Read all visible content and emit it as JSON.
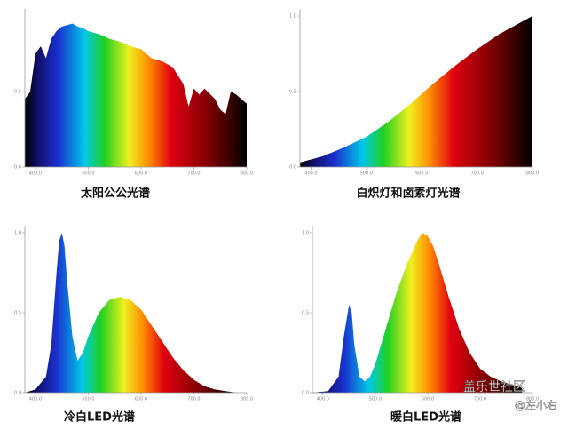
{
  "chart_data": [
    {
      "type": "area",
      "title": "太阳公公光谱",
      "x": [
        380,
        390,
        400,
        410,
        420,
        430,
        440,
        450,
        460,
        470,
        480,
        490,
        500,
        520,
        540,
        560,
        580,
        600,
        620,
        640,
        660,
        680,
        690,
        700,
        710,
        720,
        740,
        750,
        760,
        770,
        780,
        790,
        800
      ],
      "values": [
        0.45,
        0.5,
        0.75,
        0.8,
        0.72,
        0.85,
        0.9,
        0.93,
        0.94,
        0.95,
        0.93,
        0.92,
        0.9,
        0.88,
        0.85,
        0.83,
        0.8,
        0.78,
        0.72,
        0.7,
        0.66,
        0.55,
        0.4,
        0.52,
        0.48,
        0.52,
        0.45,
        0.38,
        0.35,
        0.5,
        0.48,
        0.45,
        0.42
      ],
      "xlim": [
        380,
        800
      ],
      "ylim": [
        0,
        1
      ],
      "xticks": [
        {
          "value": 400,
          "label": "400.0"
        },
        {
          "value": 500,
          "label": "500.0"
        },
        {
          "value": 600,
          "label": "600.0"
        },
        {
          "value": 700,
          "label": "700.0"
        },
        {
          "value": 800,
          "label": "800.0"
        }
      ],
      "yticks": [
        {
          "value": 0,
          "label": "0.0"
        },
        0.5
      ]
    },
    {
      "type": "area",
      "title": "白炽灯和卤素灯光谱",
      "x": [
        380,
        420,
        460,
        500,
        540,
        580,
        620,
        660,
        700,
        740,
        780,
        800
      ],
      "values": [
        0.03,
        0.07,
        0.13,
        0.2,
        0.3,
        0.42,
        0.55,
        0.67,
        0.78,
        0.88,
        0.96,
        1.0
      ],
      "xlim": [
        380,
        800
      ],
      "ylim": [
        0,
        1
      ],
      "xticks": [
        {
          "value": 400,
          "label": "400.0"
        },
        {
          "value": 500,
          "label": "500.0"
        },
        {
          "value": 600,
          "label": "600.0"
        },
        {
          "value": 700,
          "label": "700.0"
        },
        {
          "value": 800,
          "label": "800.0"
        }
      ],
      "yticks": [
        {
          "value": 0,
          "label": "0.0"
        },
        0.5,
        {
          "value": 1,
          "label": "1.0"
        }
      ]
    },
    {
      "type": "area",
      "title": "冷白LED光谱",
      "x": [
        380,
        400,
        420,
        430,
        440,
        445,
        450,
        455,
        460,
        470,
        480,
        490,
        500,
        520,
        540,
        560,
        580,
        600,
        620,
        640,
        660,
        680,
        700,
        720,
        740,
        760,
        780
      ],
      "values": [
        0,
        0.02,
        0.1,
        0.3,
        0.75,
        0.95,
        1.0,
        0.92,
        0.7,
        0.35,
        0.2,
        0.25,
        0.35,
        0.5,
        0.58,
        0.6,
        0.58,
        0.52,
        0.42,
        0.32,
        0.22,
        0.14,
        0.08,
        0.04,
        0.02,
        0.01,
        0
      ],
      "xlim": [
        380,
        800
      ],
      "ylim": [
        0,
        1
      ],
      "xticks": [
        {
          "value": 400,
          "label": "400.0"
        },
        {
          "value": 500,
          "label": "500.0"
        },
        {
          "value": 600,
          "label": "600.0"
        },
        {
          "value": 700,
          "label": "700.0"
        },
        {
          "value": 800,
          "label": "800.0"
        }
      ],
      "yticks": [
        {
          "value": 0,
          "label": "0.0"
        },
        0.5,
        {
          "value": 1,
          "label": "1.0"
        }
      ]
    },
    {
      "type": "area",
      "title": "暖白LED光谱",
      "x": [
        380,
        410,
        430,
        440,
        450,
        455,
        460,
        470,
        480,
        490,
        500,
        520,
        540,
        560,
        580,
        590,
        600,
        610,
        620,
        640,
        660,
        680,
        700,
        720,
        740,
        760,
        780
      ],
      "values": [
        0,
        0.01,
        0.1,
        0.35,
        0.55,
        0.5,
        0.3,
        0.1,
        0.07,
        0.1,
        0.18,
        0.4,
        0.62,
        0.8,
        0.95,
        1.0,
        0.98,
        0.92,
        0.82,
        0.6,
        0.4,
        0.25,
        0.15,
        0.1,
        0.07,
        0.05,
        0.03
      ],
      "xlim": [
        380,
        800
      ],
      "ylim": [
        0,
        1
      ],
      "xticks": [
        {
          "value": 400,
          "label": "400.0"
        },
        {
          "value": 500,
          "label": "500.0"
        },
        {
          "value": 600,
          "label": "600.0"
        },
        {
          "value": 700,
          "label": "700.0"
        },
        {
          "value": 800,
          "label": "800.0"
        }
      ],
      "yticks": [
        {
          "value": 0,
          "label": "0.0"
        },
        0.5,
        {
          "value": 1,
          "label": "1.0"
        }
      ]
    }
  ],
  "watermark": {
    "site": "盖乐世社区",
    "author": "@左小右"
  }
}
